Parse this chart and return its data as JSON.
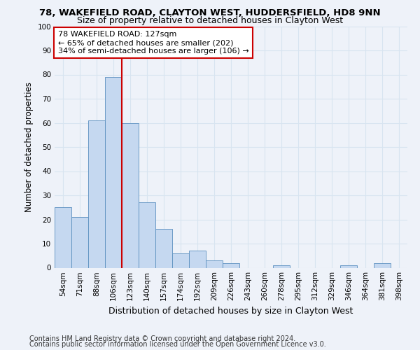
{
  "title1": "78, WAKEFIELD ROAD, CLAYTON WEST, HUDDERSFIELD, HD8 9NN",
  "title2": "Size of property relative to detached houses in Clayton West",
  "xlabel": "Distribution of detached houses by size in Clayton West",
  "ylabel": "Number of detached properties",
  "categories": [
    "54sqm",
    "71sqm",
    "88sqm",
    "106sqm",
    "123sqm",
    "140sqm",
    "157sqm",
    "174sqm",
    "192sqm",
    "209sqm",
    "226sqm",
    "243sqm",
    "260sqm",
    "278sqm",
    "295sqm",
    "312sqm",
    "329sqm",
    "346sqm",
    "364sqm",
    "381sqm",
    "398sqm"
  ],
  "values": [
    25,
    21,
    61,
    79,
    60,
    27,
    16,
    6,
    7,
    3,
    2,
    0,
    0,
    1,
    0,
    0,
    0,
    1,
    0,
    2,
    0
  ],
  "bar_color": "#c5d8f0",
  "bar_edge_color": "#5a8fbf",
  "vline_x_index": 4,
  "vline_color": "#cc0000",
  "annotation_line1": "78 WAKEFIELD ROAD: 127sqm",
  "annotation_line2": "← 65% of detached houses are smaller (202)",
  "annotation_line3": "34% of semi-detached houses are larger (106) →",
  "annotation_box_color": "#ffffff",
  "annotation_box_edge": "#cc0000",
  "ylim": [
    0,
    100
  ],
  "yticks": [
    0,
    10,
    20,
    30,
    40,
    50,
    60,
    70,
    80,
    90,
    100
  ],
  "footer1": "Contains HM Land Registry data © Crown copyright and database right 2024.",
  "footer2": "Contains public sector information licensed under the Open Government Licence v3.0.",
  "bg_color": "#eef2f9",
  "grid_color": "#d8e4f0",
  "title1_fontsize": 9.5,
  "title2_fontsize": 9,
  "xlabel_fontsize": 9,
  "ylabel_fontsize": 8.5,
  "tick_fontsize": 7.5,
  "annotation_fontsize": 8,
  "footer_fontsize": 7
}
